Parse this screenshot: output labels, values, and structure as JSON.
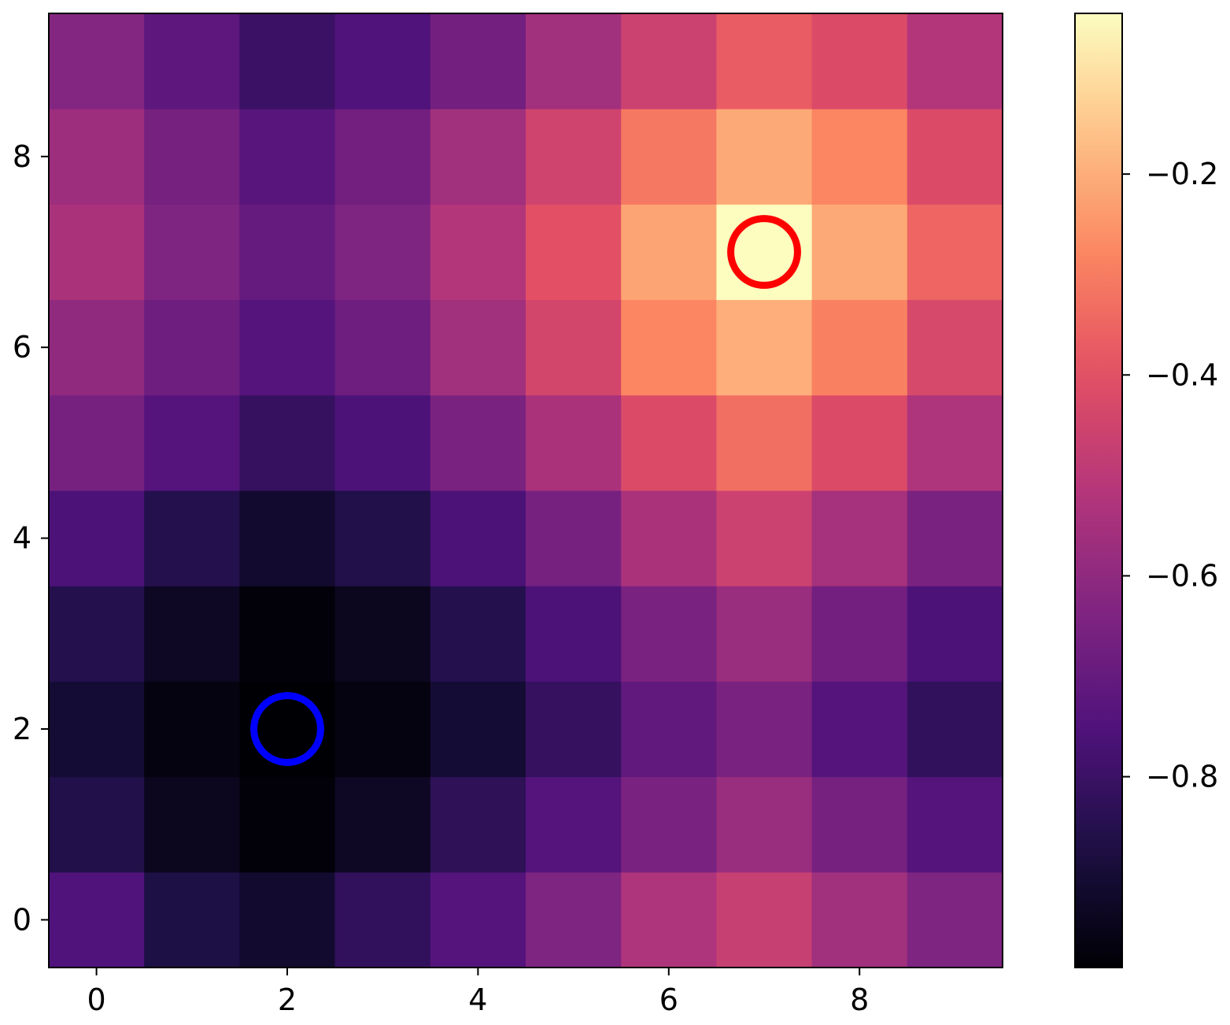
{
  "chart_data": {
    "type": "heatmap",
    "title": "",
    "xlabel": "",
    "ylabel": "",
    "colormap": "magma",
    "x": [
      0,
      1,
      2,
      3,
      4,
      5,
      6,
      7,
      8,
      9
    ],
    "y": [
      0,
      1,
      2,
      3,
      4,
      5,
      6,
      7,
      8,
      9
    ],
    "xlim": [
      -0.5,
      9.5
    ],
    "ylim": [
      -0.5,
      9.5
    ],
    "xticks": [
      0,
      2,
      4,
      6,
      8
    ],
    "yticks": [
      0,
      2,
      4,
      6,
      8
    ],
    "xtick_labels": [
      "0",
      "2",
      "4",
      "6",
      "8"
    ],
    "ytick_labels": [
      "0",
      "2",
      "4",
      "6",
      "8"
    ],
    "grid": false,
    "values": [
      [
        -0.75,
        -0.87,
        -0.91,
        -0.82,
        -0.74,
        -0.64,
        -0.53,
        -0.47,
        -0.56,
        -0.64
      ],
      [
        -0.86,
        -0.94,
        -0.98,
        -0.93,
        -0.83,
        -0.74,
        -0.65,
        -0.58,
        -0.66,
        -0.74
      ],
      [
        -0.9,
        -0.97,
        -0.99,
        -0.97,
        -0.9,
        -0.81,
        -0.71,
        -0.65,
        -0.74,
        -0.82
      ],
      [
        -0.85,
        -0.93,
        -0.98,
        -0.94,
        -0.85,
        -0.76,
        -0.65,
        -0.58,
        -0.67,
        -0.76
      ],
      [
        -0.76,
        -0.85,
        -0.91,
        -0.86,
        -0.76,
        -0.66,
        -0.54,
        -0.46,
        -0.55,
        -0.65
      ],
      [
        -0.66,
        -0.74,
        -0.81,
        -0.76,
        -0.65,
        -0.54,
        -0.42,
        -0.33,
        -0.42,
        -0.53
      ],
      [
        -0.6,
        -0.68,
        -0.74,
        -0.68,
        -0.56,
        -0.44,
        -0.28,
        -0.2,
        -0.29,
        -0.43
      ],
      [
        -0.54,
        -0.64,
        -0.7,
        -0.64,
        -0.52,
        -0.4,
        -0.22,
        -0.04,
        -0.21,
        -0.35
      ],
      [
        -0.57,
        -0.66,
        -0.73,
        -0.67,
        -0.56,
        -0.45,
        -0.31,
        -0.21,
        -0.28,
        -0.42
      ],
      [
        -0.63,
        -0.72,
        -0.8,
        -0.75,
        -0.67,
        -0.56,
        -0.46,
        -0.37,
        -0.42,
        -0.52
      ]
    ],
    "colorbar": {
      "range": [
        -0.99,
        -0.04
      ],
      "ticks": [
        -0.2,
        -0.4,
        -0.6,
        -0.8
      ],
      "tick_labels": [
        "−0.2",
        "−0.4",
        "−0.6",
        "−0.8"
      ]
    },
    "markers": [
      {
        "shape": "circle",
        "color": "#ff0000",
        "x": 7,
        "y": 7
      },
      {
        "shape": "circle",
        "color": "#0000ff",
        "x": 2,
        "y": 2
      }
    ]
  }
}
